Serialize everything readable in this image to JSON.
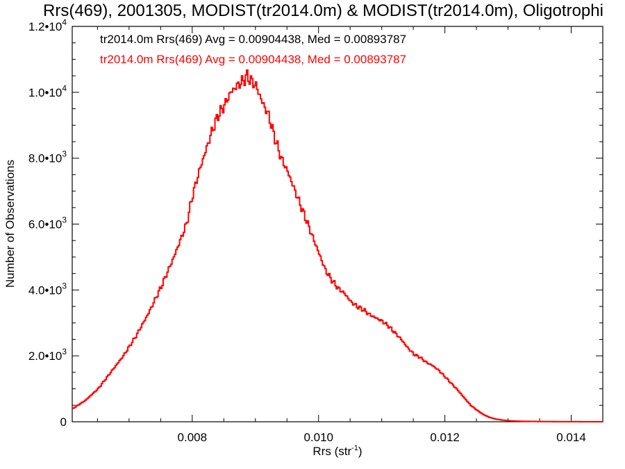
{
  "chart_data": {
    "type": "line",
    "title": "Rrs(469), 2001305, MODIST(tr2014.0m) & MODIST(tr2014.0m), Oligotrophi",
    "xlabel_base": "Rrs (str",
    "xlabel_sup": "-1",
    "xlabel_end": ")",
    "ylabel": "Number of Observations",
    "xlim": [
      0.0061,
      0.0145
    ],
    "ylim": [
      0,
      12000
    ],
    "x_ticks": [
      {
        "value": 0.008,
        "label": "0.008"
      },
      {
        "value": 0.01,
        "label": "0.010"
      },
      {
        "value": 0.012,
        "label": "0.012"
      },
      {
        "value": 0.014,
        "label": "0.014"
      }
    ],
    "y_ticks": [
      {
        "value": 0,
        "mant": "0",
        "exp": ""
      },
      {
        "value": 2000,
        "mant": "2.0•10",
        "exp": "3"
      },
      {
        "value": 4000,
        "mant": "4.0•10",
        "exp": "3"
      },
      {
        "value": 6000,
        "mant": "6.0•10",
        "exp": "3"
      },
      {
        "value": 8000,
        "mant": "8.0•10",
        "exp": "3"
      },
      {
        "value": 10000,
        "mant": "1.0•10",
        "exp": "4"
      },
      {
        "value": 12000,
        "mant": "1.2•10",
        "exp": "4"
      }
    ],
    "annotations": [
      {
        "text": "tr2014.0m Rrs(469) Avg = 0.00904438, Med = 0.00893787",
        "color": "#000000"
      },
      {
        "text": "tr2014.0m Rrs(469) Avg = 0.00904438, Med = 0.00893787",
        "color": "#ff0000"
      }
    ],
    "series": [
      {
        "color": "#ff0000",
        "x": [
          0.0061,
          0.0063,
          0.0065,
          0.0067,
          0.0069,
          0.0071,
          0.0073,
          0.0075,
          0.0077,
          0.0078,
          0.0079,
          0.008,
          0.0081,
          0.0082,
          0.0083,
          0.0084,
          0.0085,
          0.0086,
          0.0087,
          0.0088,
          0.00885,
          0.0089,
          0.009,
          0.0091,
          0.0092,
          0.0093,
          0.0094,
          0.0095,
          0.0096,
          0.0097,
          0.0098,
          0.0099,
          0.01,
          0.0101,
          0.0102,
          0.0103,
          0.0104,
          0.0105,
          0.0106,
          0.0107,
          0.0108,
          0.0109,
          0.011,
          0.0111,
          0.0112,
          0.0113,
          0.0114,
          0.0115,
          0.0116,
          0.0117,
          0.0118,
          0.0119,
          0.012,
          0.0121,
          0.0122,
          0.0123,
          0.0124,
          0.0125,
          0.0126,
          0.0127,
          0.0128,
          0.0129,
          0.013,
          0.0132,
          0.0134,
          0.0136,
          0.0138,
          0.014,
          0.0142,
          0.0145
        ],
        "y": [
          400,
          650,
          1000,
          1500,
          2000,
          2600,
          3300,
          4100,
          5000,
          5500,
          6000,
          6900,
          7600,
          8200,
          8800,
          9300,
          9600,
          10000,
          10200,
          10350,
          10500,
          10400,
          10200,
          9700,
          9300,
          8600,
          8000,
          7600,
          7100,
          6600,
          6100,
          5600,
          5100,
          4600,
          4300,
          4050,
          3900,
          3650,
          3500,
          3400,
          3250,
          3150,
          3050,
          2900,
          2700,
          2500,
          2250,
          2050,
          1950,
          1800,
          1700,
          1550,
          1350,
          1150,
          950,
          720,
          500,
          350,
          220,
          130,
          80,
          50,
          30,
          15,
          10,
          5,
          3,
          2,
          1,
          0
        ]
      }
    ]
  }
}
